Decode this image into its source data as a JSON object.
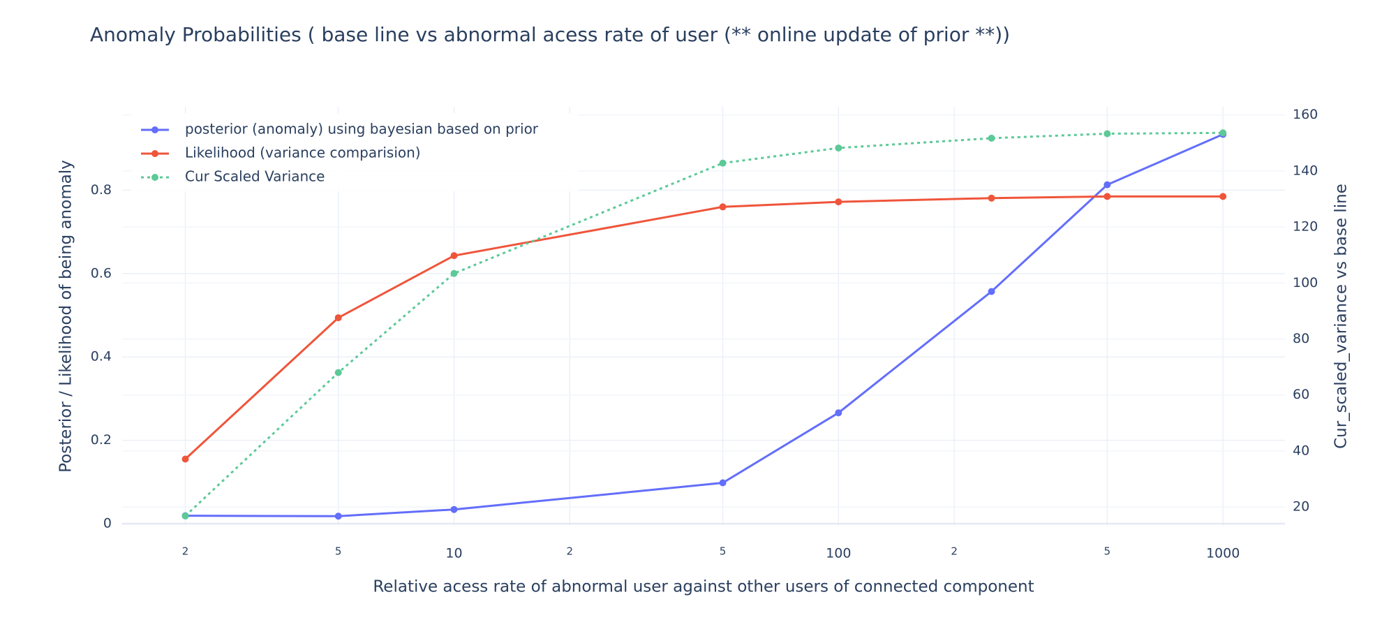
{
  "chart_data": {
    "type": "line",
    "title": "Anomaly Probabilities ( base line vs abnormal acess rate of user (**  online update of prior **))",
    "x_label": "Relative  acess rate of abnormal user against other users of connected component",
    "y_label": "Posterior / Likelihood of being anomaly",
    "y2_label": "Cur_scaled_variance vs base line",
    "x": [
      2,
      5,
      10,
      50,
      100,
      250,
      500,
      1000
    ],
    "x_log": true,
    "xlim": [
      1.37,
      1450
    ],
    "xticks": [
      2,
      5,
      10,
      {
        "value": 20,
        "label": "2"
      },
      {
        "value": 50,
        "label": "5"
      },
      100,
      {
        "value": 200,
        "label": "2"
      },
      {
        "value": 500,
        "label": "5"
      },
      1000
    ],
    "ylim": [
      -0.005,
      1.0
    ],
    "yticks": [
      0,
      0.2,
      0.4,
      0.6,
      0.8
    ],
    "y2lim": [
      13.3,
      162.9
    ],
    "y2ticks": [
      20,
      40,
      60,
      80,
      100,
      120,
      140,
      160
    ],
    "grid": true,
    "legend": "top-left",
    "series": [
      {
        "name": "posterior (anomaly) using bayesian based on prior",
        "color": "#636efa",
        "dash": "solid",
        "values": [
          0.019,
          0.018,
          0.034,
          0.098,
          0.266,
          0.557,
          0.813,
          0.934
        ]
      },
      {
        "name": "Likelihood (variance comparision)",
        "color": "#ef553b",
        "dash": "solid",
        "values": [
          0.155,
          0.494,
          0.643,
          0.76,
          0.772,
          0.781,
          0.785,
          0.785
        ]
      },
      {
        "name": "Cur Scaled Variance",
        "color": "#5cc997",
        "dash": "dot",
        "axis": "y2",
        "values": [
          16.8,
          68,
          103.4,
          142.8,
          148.2,
          151.7,
          153.3,
          153.6
        ]
      }
    ]
  }
}
